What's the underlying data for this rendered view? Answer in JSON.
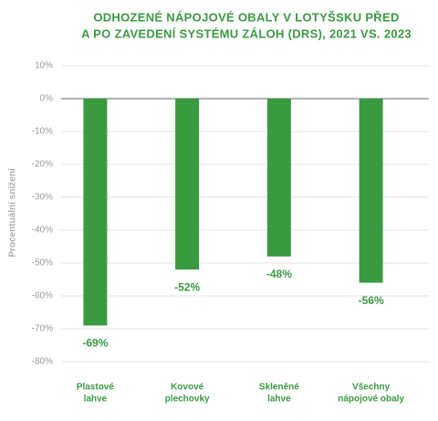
{
  "chart_data": {
    "type": "bar",
    "title": [
      "ODHOZENÉ NÁPOJOVÉ OBALY V LOTYŠSKU PŘED",
      "A PO ZAVEDENÍ SYSTÉMU ZÁLOH (DRS), 2021 VS. 2023"
    ],
    "y_label": "Procentuální snížení",
    "categories": [
      [
        "Plastové",
        "lahve"
      ],
      [
        "Kovové",
        "plechovky"
      ],
      [
        "Skleněné",
        "lahve"
      ],
      [
        "Všechny",
        "nápojové obaly"
      ]
    ],
    "values": [
      -69,
      -52,
      -48,
      -56
    ],
    "value_labels": [
      "-69%",
      "-52%",
      "-48%",
      "-56%"
    ],
    "color": "#3a9a40",
    "ylim": [
      -80,
      10
    ],
    "yticks": [
      {
        "value": 10,
        "label": "10%"
      },
      {
        "value": 0,
        "label": "0%"
      },
      {
        "value": -10,
        "label": "-10%"
      },
      {
        "value": -20,
        "label": "-20%"
      },
      {
        "value": -30,
        "label": "-30%"
      },
      {
        "value": -40,
        "label": "-40%"
      },
      {
        "value": -50,
        "label": "-50%"
      },
      {
        "value": -60,
        "label": "-60%"
      },
      {
        "value": -70,
        "label": "-70%"
      },
      {
        "value": -80,
        "label": "-80%"
      }
    ],
    "grid": true
  }
}
